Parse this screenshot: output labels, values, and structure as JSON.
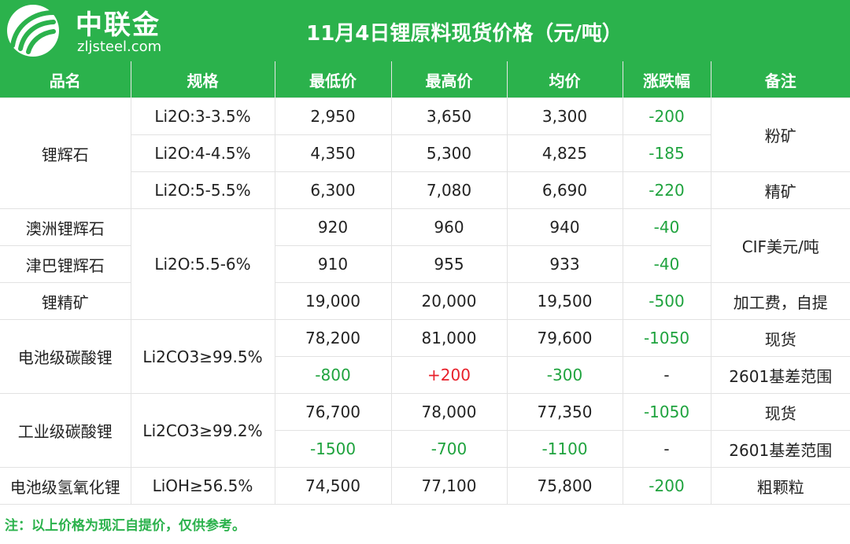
{
  "brand": {
    "name": "中联金",
    "domain": "zljsteel.com"
  },
  "title": "11月4日锂原料现货价格（元/吨）",
  "headers": [
    "品名",
    "规格",
    "最低价",
    "最高价",
    "均价",
    "涨跌幅",
    "备注"
  ],
  "rows": [
    {
      "name": "锂辉石",
      "spec": "Li2O:3-3.5%",
      "low": "2,950",
      "high": "3,650",
      "avg": "3,300",
      "change": "-200",
      "note": "粉矿"
    },
    {
      "spec": "Li2O:4-4.5%",
      "low": "4,350",
      "high": "5,300",
      "avg": "4,825",
      "change": "-185"
    },
    {
      "spec": "Li2O:5-5.5%",
      "low": "6,300",
      "high": "7,080",
      "avg": "6,690",
      "change": "-220",
      "note": "精矿"
    },
    {
      "name": "澳洲锂辉石",
      "spec": "Li2O:5.5-6%",
      "low": "920",
      "high": "960",
      "avg": "940",
      "change": "-40",
      "note": "CIF美元/吨"
    },
    {
      "name": "津巴锂辉石",
      "low": "910",
      "high": "955",
      "avg": "933",
      "change": "-40"
    },
    {
      "name": "锂精矿",
      "low": "19,000",
      "high": "20,000",
      "avg": "19,500",
      "change": "-500",
      "note": "加工费，自提"
    },
    {
      "name": "电池级碳酸锂",
      "spec": "Li2CO3≥99.5%",
      "low": "78,200",
      "high": "81,000",
      "avg": "79,600",
      "change": "-1050",
      "note": "现货"
    },
    {
      "low": "-800",
      "high": "+200",
      "avg": "-300",
      "change": "-",
      "note": "2601基差范围"
    },
    {
      "name": "工业级碳酸锂",
      "spec": "Li2CO3≥99.2%",
      "low": "76,700",
      "high": "78,000",
      "avg": "77,350",
      "change": "-1050",
      "note": "现货"
    },
    {
      "low": "-1500",
      "high": "-700",
      "avg": "-1100",
      "change": "-",
      "note": "2601基差范围"
    },
    {
      "name": "电池级氢氧化锂",
      "spec": "LiOH≥56.5%",
      "low": "74,500",
      "high": "77,100",
      "avg": "75,800",
      "change": "-200",
      "note": "粗颗粒"
    }
  ],
  "footnote": "注：以上价格为现汇自提价，仅供参考。",
  "colors": {
    "brand_green": "#2bb24c",
    "down_green": "#1fa33e",
    "up_red": "#e8202a"
  }
}
